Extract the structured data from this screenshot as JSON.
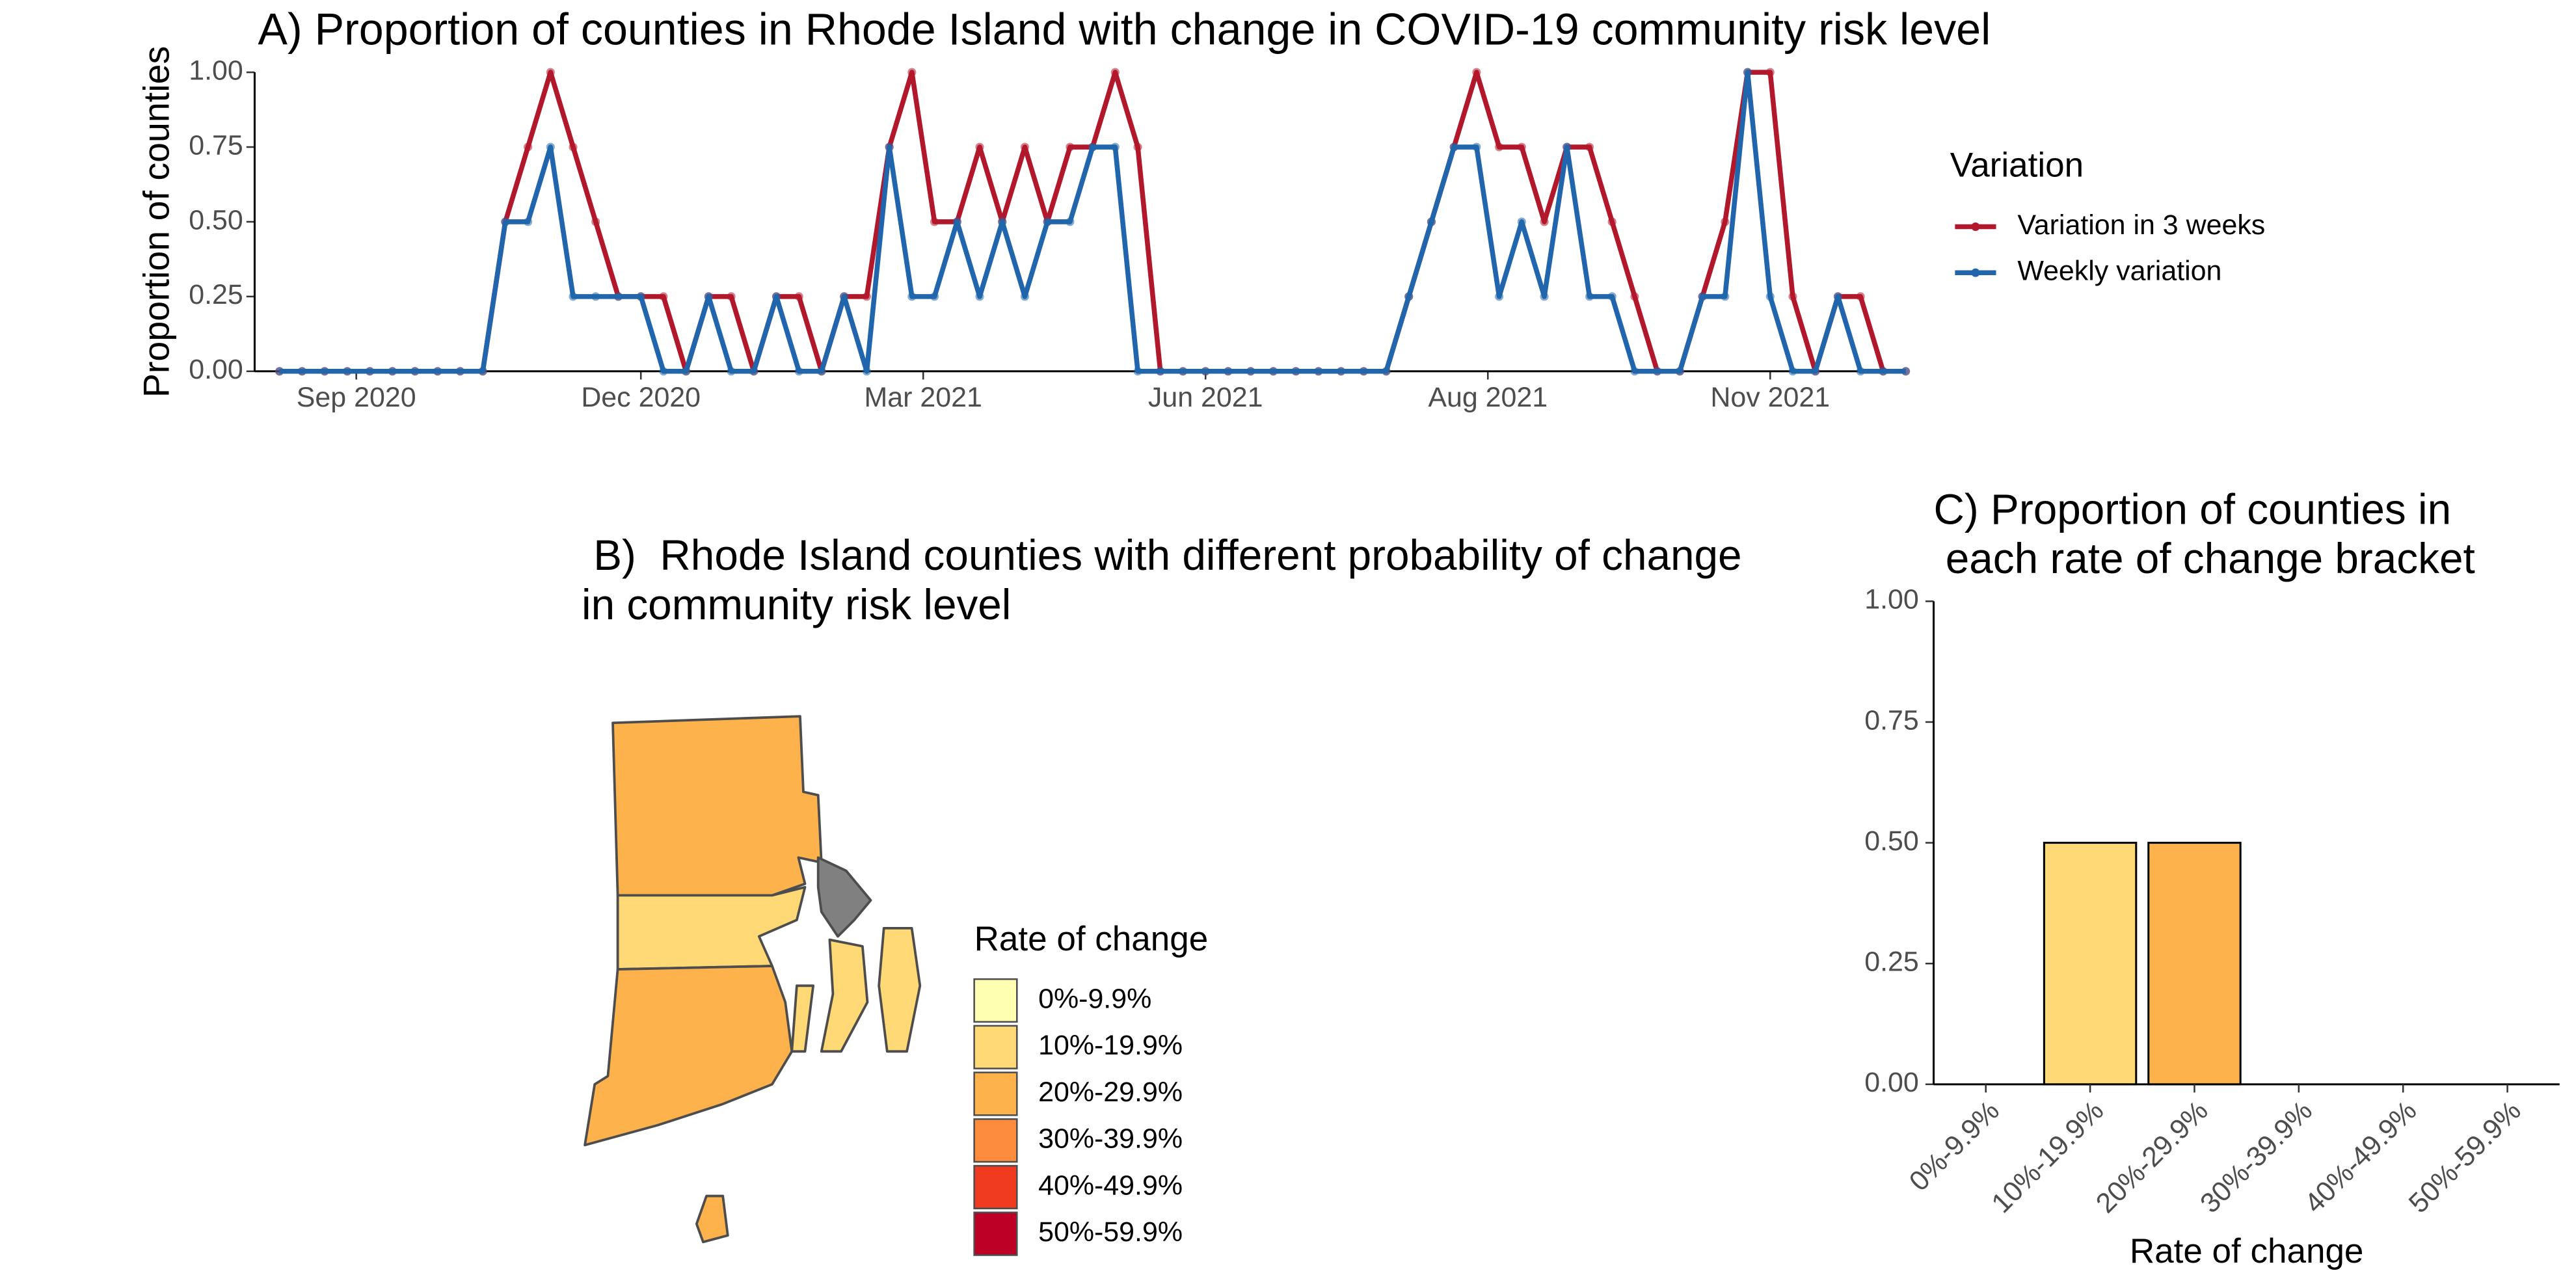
{
  "chart_data": [
    {
      "type": "line",
      "title": "A) Proportion of counties in Rhode Island with change in COVID-19 community risk level",
      "ylabel": "Proportion of counties",
      "legend_title": "Variation",
      "x": [
        0,
        1,
        2,
        3,
        4,
        5,
        6,
        7,
        8,
        9,
        10,
        11,
        12,
        13,
        14,
        15,
        16,
        17,
        18,
        19,
        20,
        21,
        22,
        23,
        24,
        25,
        26,
        27,
        28,
        29,
        30,
        31,
        32,
        33,
        34,
        35,
        36,
        37,
        38,
        39,
        40,
        41,
        42,
        43,
        44,
        45,
        46,
        47,
        48,
        49,
        50,
        51,
        52,
        53,
        54,
        55,
        56,
        57,
        58,
        59,
        60,
        61,
        62,
        63,
        64,
        65,
        66,
        67,
        68,
        69,
        70,
        71,
        72
      ],
      "xlim": [
        -1.1,
        72
      ],
      "xticks": [
        {
          "value": 3.4,
          "label": "Sep 2020"
        },
        {
          "value": 16,
          "label": "Dec 2020"
        },
        {
          "value": 28.5,
          "label": "Mar 2021"
        },
        {
          "value": 41,
          "label": "Jun 2021"
        },
        {
          "value": 53.5,
          "label": "Aug 2021"
        },
        {
          "value": 66,
          "label": "Nov 2021"
        }
      ],
      "ylim": [
        0,
        1
      ],
      "yticks": [
        {
          "value": 0,
          "label": "0.00"
        },
        {
          "value": 0.25,
          "label": "0.25"
        },
        {
          "value": 0.5,
          "label": "0.50"
        },
        {
          "value": 0.75,
          "label": "0.75"
        },
        {
          "value": 1,
          "label": "1.00"
        }
      ],
      "series": [
        {
          "name": "Variation in 3 weeks",
          "color": "#b2182b",
          "values": [
            0,
            0,
            0,
            0,
            0,
            0,
            0,
            0,
            0,
            0,
            0.5,
            0.75,
            1,
            0.75,
            0.5,
            0.25,
            0.25,
            0.25,
            0,
            0.25,
            0.25,
            0,
            0.25,
            0.25,
            0,
            0.25,
            0.25,
            0.75,
            1,
            0.5,
            0.5,
            0.75,
            0.5,
            0.75,
            0.5,
            0.75,
            0.75,
            1,
            0.75,
            0,
            0,
            0,
            0,
            0,
            0,
            0,
            0,
            0,
            0,
            0,
            0.25,
            0.5,
            0.75,
            1,
            0.75,
            0.75,
            0.5,
            0.75,
            0.75,
            0.5,
            0.25,
            0,
            0,
            0.25,
            0.5,
            1,
            1,
            0.25,
            0,
            0.25,
            0.25,
            0,
            0
          ]
        },
        {
          "name": "Weekly variation",
          "color": "#2166ac",
          "values": [
            0,
            0,
            0,
            0,
            0,
            0,
            0,
            0,
            0,
            0,
            0.5,
            0.5,
            0.75,
            0.25,
            0.25,
            0.25,
            0.25,
            0,
            0,
            0.25,
            0,
            0,
            0.25,
            0,
            0,
            0.25,
            0,
            0.75,
            0.25,
            0.25,
            0.5,
            0.25,
            0.5,
            0.25,
            0.5,
            0.5,
            0.75,
            0.75,
            0,
            0,
            0,
            0,
            0,
            0,
            0,
            0,
            0,
            0,
            0,
            0,
            0.25,
            0.5,
            0.75,
            0.75,
            0.25,
            0.5,
            0.25,
            0.75,
            0.25,
            0.25,
            0,
            0,
            0,
            0.25,
            0.25,
            1,
            0.25,
            0,
            0,
            0.25,
            0,
            0,
            0
          ]
        }
      ]
    },
    {
      "type": "map",
      "title": [
        " B)  Rhode Island counties with different probability of change",
        "in community risk level"
      ],
      "legend_title": "Rate of change",
      "categories": [
        "0%-9.9%",
        "10%-19.9%",
        "20%-29.9%",
        "30%-39.9%",
        "40%-49.9%",
        "50%-59.9%"
      ],
      "colors": [
        "#ffffb2",
        "#fed976",
        "#feb24c",
        "#fd8d3c",
        "#f03b20",
        "#bd0026"
      ]
    },
    {
      "type": "bar",
      "title": [
        "C) Proportion of counties in",
        " each rate of change bracket"
      ],
      "xlabel": "Rate of change",
      "categories": [
        "0%-9.9%",
        "10%-19.9%",
        "20%-29.9%",
        "30%-39.9%",
        "40%-49.9%",
        "50%-59.9%"
      ],
      "values": [
        0,
        0.5,
        0.5,
        0,
        0,
        0
      ],
      "colors": [
        "#ffffb2",
        "#fed976",
        "#feb24c",
        "#fd8d3c",
        "#f03b20",
        "#bd0026"
      ],
      "ylim": [
        0,
        1
      ],
      "yticks": [
        {
          "value": 0,
          "label": "0.00"
        },
        {
          "value": 0.25,
          "label": "0.25"
        },
        {
          "value": 0.5,
          "label": "0.50"
        },
        {
          "value": 0.75,
          "label": "0.75"
        },
        {
          "value": 1,
          "label": "1.00"
        }
      ]
    }
  ]
}
